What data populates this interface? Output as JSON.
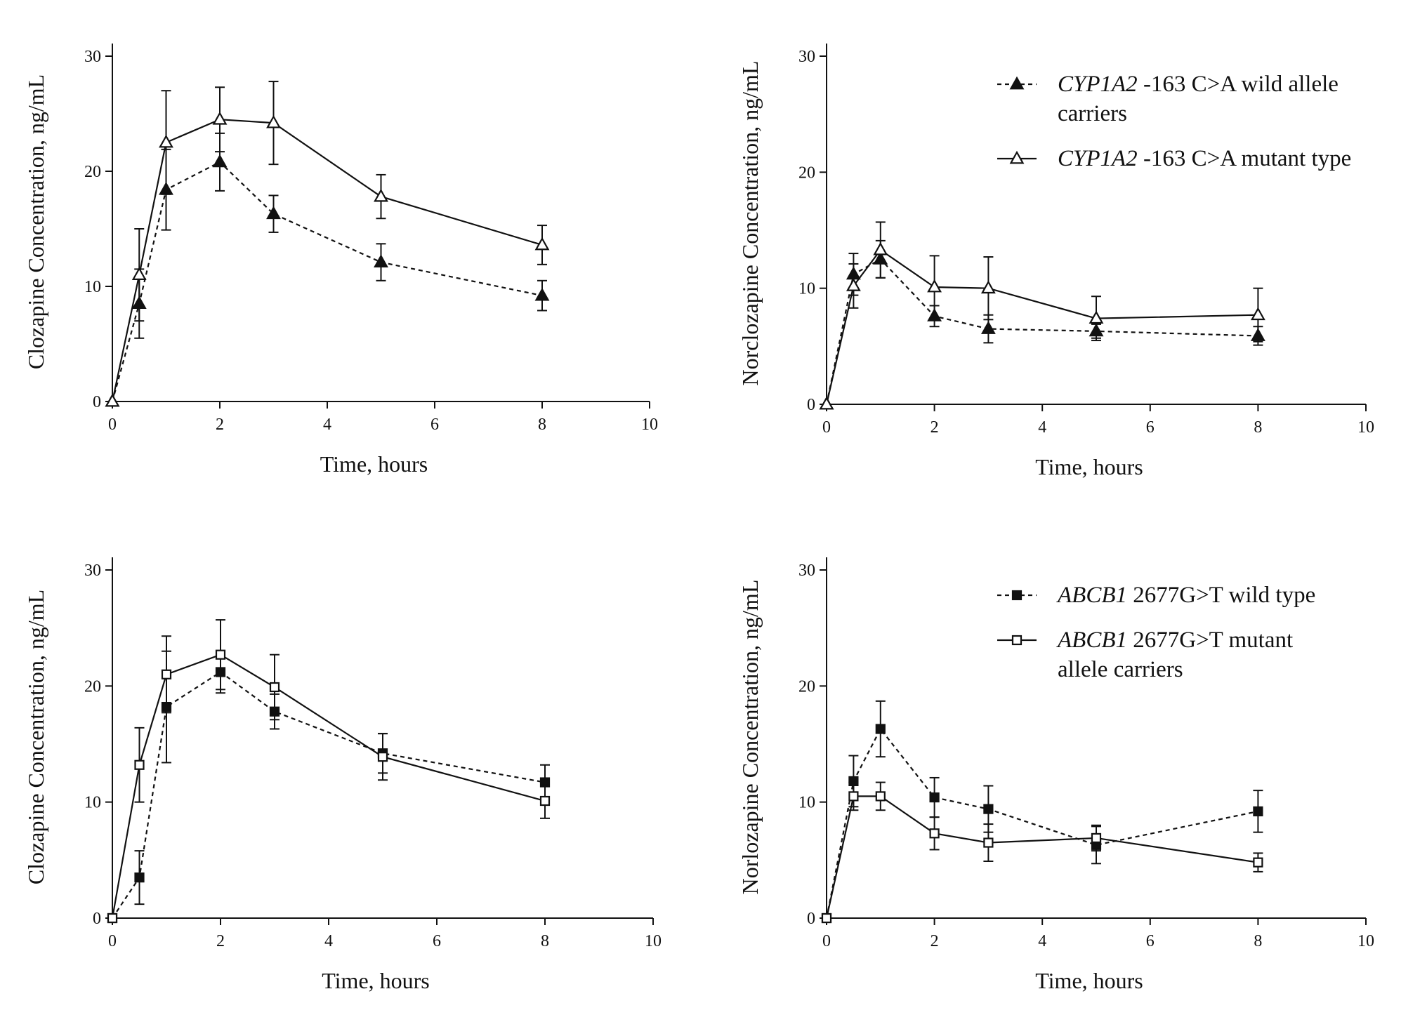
{
  "figure_title": "Clozapine and norclozapine plasma concentration-time profiles by genotype",
  "chart_data": [
    {
      "type": "line",
      "id": "clozapine-cyp1a2",
      "title": "",
      "xlabel": "Time, hours",
      "ylabel": "Clozapine Concentration, ng/mL",
      "xlim": [
        0,
        10
      ],
      "ylim": [
        0,
        30
      ],
      "xticks": [
        0,
        2,
        4,
        6,
        8,
        10
      ],
      "yticks": [
        0,
        10,
        20,
        30
      ],
      "x_tick_labels": [
        "0",
        "2",
        "4",
        "6",
        "8",
        "10"
      ],
      "y_tick_labels": [
        "0",
        "10",
        "20",
        "30"
      ],
      "grid": false,
      "x": [
        0,
        0.5,
        1,
        2,
        3,
        5,
        8
      ],
      "series": [
        {
          "name": "CYP1A2 -163 C>A wild allele carriers",
          "marker": "filled-triangle",
          "line": "dashed",
          "values": [
            0,
            8.5,
            18.4,
            20.8,
            16.3,
            12.1,
            9.2
          ],
          "err": [
            0,
            3.0,
            3.5,
            2.5,
            1.6,
            1.6,
            1.3
          ]
        },
        {
          "name": "CYP1A2 -163 C>A mutant type",
          "marker": "open-triangle",
          "line": "solid",
          "values": [
            0,
            11.0,
            22.5,
            24.5,
            24.2,
            17.8,
            13.6
          ],
          "err": [
            0,
            4.0,
            4.5,
            2.8,
            3.6,
            1.9,
            1.7
          ]
        }
      ]
    },
    {
      "type": "line",
      "id": "norclozapine-cyp1a2",
      "title": "",
      "xlabel": "Time, hours",
      "ylabel": "Norclozapine Concentration, ng/mL",
      "xlim": [
        0,
        10
      ],
      "ylim": [
        0,
        30
      ],
      "xticks": [
        0,
        2,
        4,
        6,
        8,
        10
      ],
      "yticks": [
        0,
        10,
        20,
        30
      ],
      "x_tick_labels": [
        "0",
        "2",
        "4",
        "6",
        "8",
        "10"
      ],
      "y_tick_labels": [
        "0",
        "10",
        "20",
        "30"
      ],
      "grid": false,
      "legend_position": "top-right",
      "legend": [
        {
          "italic": "CYP1A2",
          "rest": " -163 C>A wild allele",
          "rest2": "carriers",
          "marker": "filled-triangle",
          "line": "dashed"
        },
        {
          "italic": "CYP1A2",
          "rest": " -163 C>A mutant type",
          "rest2": "",
          "marker": "open-triangle",
          "line": "solid"
        }
      ],
      "x": [
        0,
        0.5,
        1,
        2,
        3,
        5,
        8
      ],
      "series": [
        {
          "name": "CYP1A2 -163 C>A wild allele carriers",
          "marker": "filled-triangle",
          "line": "dashed",
          "values": [
            0,
            11.2,
            12.5,
            7.6,
            6.5,
            6.3,
            5.9
          ],
          "err": [
            0,
            1.8,
            1.6,
            0.9,
            1.2,
            0.6,
            0.8
          ]
        },
        {
          "name": "CYP1A2 -163 C>A mutant type",
          "marker": "open-triangle",
          "line": "solid",
          "values": [
            0,
            10.2,
            13.3,
            10.1,
            10.0,
            7.4,
            7.7
          ],
          "err": [
            0,
            1.9,
            2.4,
            2.7,
            2.7,
            1.9,
            2.3
          ]
        }
      ]
    },
    {
      "type": "line",
      "id": "clozapine-abcb1",
      "title": "",
      "xlabel": "Time, hours",
      "ylabel": "Clozapine Concentration, ng/mL",
      "xlim": [
        0,
        10
      ],
      "ylim": [
        0,
        30
      ],
      "xticks": [
        0,
        2,
        4,
        6,
        8,
        10
      ],
      "yticks": [
        0,
        10,
        20,
        30
      ],
      "x_tick_labels": [
        "0",
        "2",
        "4",
        "6",
        "8",
        "10"
      ],
      "y_tick_labels": [
        "0",
        "10",
        "20",
        "30"
      ],
      "grid": false,
      "x": [
        0,
        0.5,
        1,
        2,
        3,
        5,
        8
      ],
      "series": [
        {
          "name": "ABCB1 2677G>T wild type",
          "marker": "filled-square",
          "line": "dashed",
          "values": [
            0,
            3.5,
            18.2,
            21.2,
            17.8,
            14.2,
            11.7
          ],
          "err": [
            0,
            2.3,
            4.8,
            1.8,
            1.5,
            1.7,
            1.5
          ]
        },
        {
          "name": "ABCB1 2677G>T mutant allele carriers",
          "marker": "open-square",
          "line": "solid",
          "values": [
            0,
            13.2,
            21.0,
            22.7,
            19.9,
            13.9,
            10.1
          ],
          "err": [
            0,
            3.2,
            3.3,
            3.0,
            2.8,
            2.0,
            1.5
          ]
        }
      ]
    },
    {
      "type": "line",
      "id": "norclozapine-abcb1",
      "title": "",
      "xlabel": "Time, hours",
      "ylabel": "Norlozapine Concentration, ng/mL",
      "xlim": [
        0,
        10
      ],
      "ylim": [
        0,
        30
      ],
      "xticks": [
        0,
        2,
        4,
        6,
        8,
        10
      ],
      "yticks": [
        0,
        10,
        20,
        30
      ],
      "x_tick_labels": [
        "0",
        "2",
        "4",
        "6",
        "8",
        "10"
      ],
      "y_tick_labels": [
        "0",
        "10",
        "20",
        "30"
      ],
      "grid": false,
      "legend_position": "top-right",
      "legend": [
        {
          "italic": "ABCB1",
          "rest": " 2677G>T wild type",
          "rest2": "",
          "marker": "filled-square",
          "line": "dashed"
        },
        {
          "italic": "ABCB1",
          "rest": " 2677G>T mutant",
          "rest2": "allele carriers",
          "marker": "open-square",
          "line": "solid"
        }
      ],
      "x": [
        0,
        0.5,
        1,
        2,
        3,
        5,
        8
      ],
      "series": [
        {
          "name": "ABCB1 2677G>T wild type",
          "marker": "filled-square",
          "line": "dashed",
          "values": [
            0,
            11.8,
            16.3,
            10.4,
            9.4,
            6.3,
            9.2
          ],
          "err": [
            0,
            2.2,
            2.4,
            1.7,
            2.0,
            1.6,
            1.8
          ]
        },
        {
          "name": "ABCB1 2677G>T mutant allele carriers",
          "marker": "open-square",
          "line": "solid",
          "values": [
            0,
            10.5,
            10.5,
            7.3,
            6.5,
            6.9,
            4.8
          ],
          "err": [
            0,
            1.2,
            1.2,
            1.4,
            1.6,
            1.1,
            0.8
          ]
        }
      ]
    }
  ]
}
